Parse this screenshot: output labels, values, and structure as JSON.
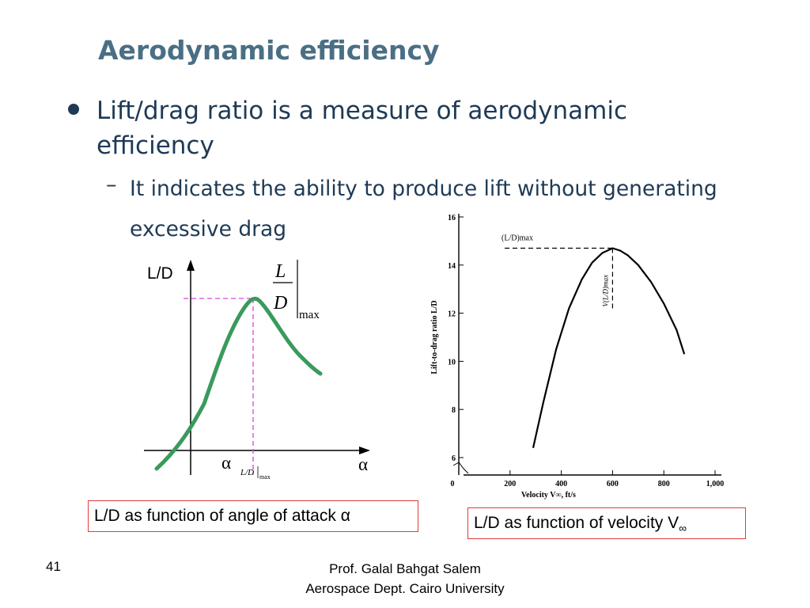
{
  "slide": {
    "title": "Aerodynamic efficiency",
    "bullet": "Lift/drag ratio is a measure of aerodynamic efficiency",
    "dash": "–",
    "sub_bullet": "It indicates the ability to produce lift without generating excessive drag",
    "caption_left": "L/D as function of angle of attack α",
    "caption_right_main": "L/D as function of velocity V",
    "caption_right_sub": "∞",
    "slide_number": "41",
    "footer_line1": "Prof. Galal Bahgat Salem",
    "footer_line2": "Aerospace Dept. Cairo University"
  },
  "left_figure": {
    "y_axis_label": "L/D",
    "x_axis_label": "α",
    "fraction_num": "L",
    "fraction_den": "D",
    "max_label": "max",
    "alpha_tick": "α",
    "alpha_tick_sub": "L/D",
    "alpha_tick_sub_max": "max",
    "curve_color": "#3a9a5c",
    "guide_color": "#e040e0"
  },
  "chart_data": {
    "type": "line",
    "title": "",
    "xlabel": "Velocity V∞, ft/s",
    "ylabel": "Lift-to-drag ratio L/D",
    "x_ticks": [
      "0",
      "200",
      "400",
      "600",
      "800",
      "1,000"
    ],
    "y_ticks": [
      "6",
      "8",
      "10",
      "12",
      "14",
      "16"
    ],
    "xlim": [
      0,
      1000
    ],
    "ylim": [
      6,
      16
    ],
    "annotation_max": "(L/D)max",
    "annotation_vel": "V(L/D)max",
    "series": [
      {
        "x": [
          290,
          330,
          380,
          430,
          480,
          520,
          560,
          600,
          630,
          660,
          700,
          750,
          800,
          850,
          880
        ],
        "y": [
          6.4,
          8.3,
          10.5,
          12.2,
          13.4,
          14.1,
          14.5,
          14.7,
          14.6,
          14.4,
          14.0,
          13.3,
          12.4,
          11.3,
          10.3
        ]
      }
    ]
  }
}
